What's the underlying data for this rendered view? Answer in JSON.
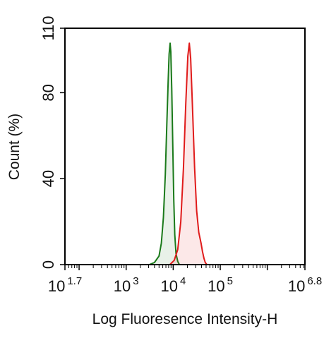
{
  "chart_data": {
    "type": "area",
    "title": "",
    "xlabel": "Log Fluoresence Intensity-H",
    "ylabel": "Count (%)",
    "x_scale": "log",
    "xlim": [
      50,
      6310000
    ],
    "ylim": [
      0,
      110
    ],
    "grid": false,
    "x_ticks": [
      {
        "value": 50,
        "base": "10",
        "exp": "1.7"
      },
      {
        "value": 1000,
        "base": "10",
        "exp": "3"
      },
      {
        "value": 10000,
        "base": "10",
        "exp": "4"
      },
      {
        "value": 100000,
        "base": "10",
        "exp": "5"
      },
      {
        "value": 6310000,
        "base": "10",
        "exp": "6.8"
      }
    ],
    "y_ticks": [
      {
        "value": 0,
        "label": "0"
      },
      {
        "value": 40,
        "label": "40"
      },
      {
        "value": 80,
        "label": "80"
      },
      {
        "value": 110,
        "label": "110"
      }
    ],
    "series": [
      {
        "color": "#1a7a1a",
        "fill": "rgba(26,122,26,0.10)",
        "points": [
          [
            3100,
            0
          ],
          [
            4000,
            1
          ],
          [
            5000,
            4
          ],
          [
            5600,
            10
          ],
          [
            6200,
            22
          ],
          [
            6800,
            42
          ],
          [
            7300,
            65
          ],
          [
            7800,
            85
          ],
          [
            8200,
            98
          ],
          [
            8600,
            103
          ],
          [
            8900,
            99
          ],
          [
            9300,
            82
          ],
          [
            9800,
            55
          ],
          [
            10300,
            30
          ],
          [
            10800,
            14
          ],
          [
            11500,
            5
          ],
          [
            12500,
            1.5
          ],
          [
            13500,
            0
          ]
        ]
      },
      {
        "color": "#e01b1b",
        "fill": "rgba(224,27,27,0.10)",
        "points": [
          [
            8500,
            0
          ],
          [
            10500,
            2
          ],
          [
            12500,
            7
          ],
          [
            14500,
            20
          ],
          [
            16500,
            45
          ],
          [
            18500,
            75
          ],
          [
            20500,
            97
          ],
          [
            22000,
            103
          ],
          [
            23500,
            96
          ],
          [
            25500,
            75
          ],
          [
            28500,
            45
          ],
          [
            31500,
            25
          ],
          [
            35000,
            15
          ],
          [
            39000,
            10
          ],
          [
            42000,
            6
          ],
          [
            45000,
            3
          ],
          [
            48000,
            1
          ],
          [
            52000,
            0
          ]
        ]
      }
    ]
  }
}
